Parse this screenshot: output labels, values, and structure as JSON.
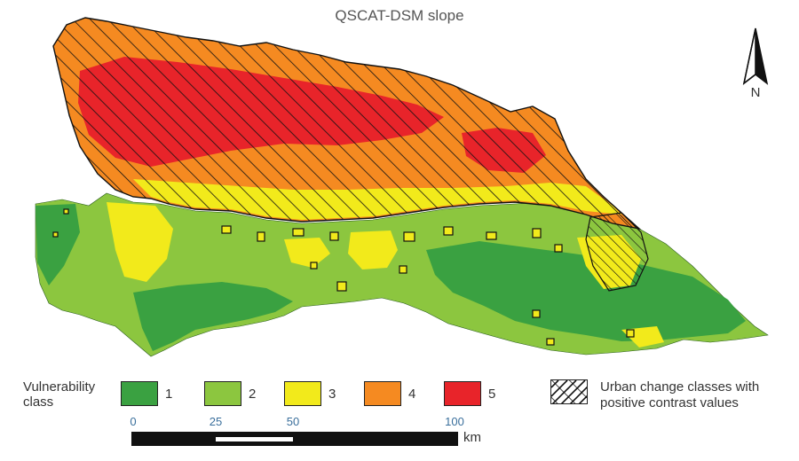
{
  "title": "QSCAT-DSM slope",
  "north": {
    "label": "N",
    "icon": "north-arrow-icon"
  },
  "legend": {
    "title_line1": "Vulnerability",
    "title_line2": "class",
    "classes": [
      {
        "label": "1",
        "color": "#3aa141"
      },
      {
        "label": "2",
        "color": "#8cc63f"
      },
      {
        "label": "3",
        "color": "#f2ea1b"
      },
      {
        "label": "4",
        "color": "#f58a21"
      },
      {
        "label": "5",
        "color": "#e8242a"
      }
    ],
    "hatch_label_line1": "Urban change classes with",
    "hatch_label_line2": "positive contrast values"
  },
  "scale_bar": {
    "ticks": [
      "0",
      "25",
      "50",
      "100"
    ],
    "unit": "km"
  }
}
